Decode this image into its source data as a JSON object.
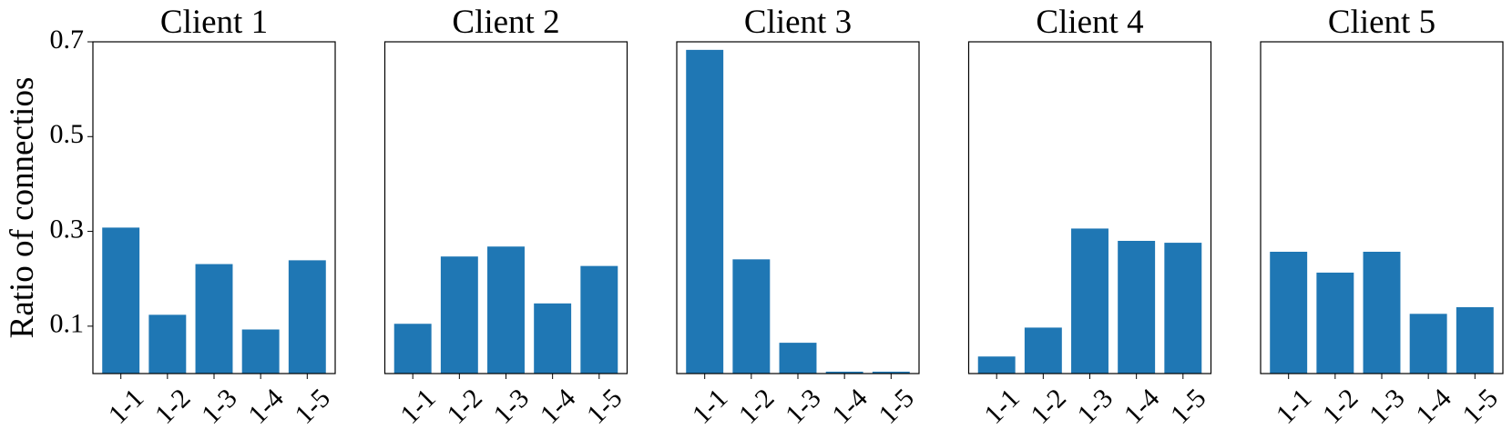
{
  "chart_data": [
    {
      "type": "bar",
      "title": "Client 1",
      "ylabel": "Ratio of connectios",
      "color": "#1f77b4",
      "categories": [
        "1-1",
        "1-2",
        "1-3",
        "1-4",
        "1-5"
      ],
      "values": [
        0.308,
        0.124,
        0.231,
        0.093,
        0.239
      ],
      "ylim": [
        0,
        0.7
      ],
      "yticks": [
        0.1,
        0.3,
        0.5,
        0.7
      ]
    },
    {
      "type": "bar",
      "title": "Client 2",
      "color": "#1f77b4",
      "categories": [
        "1-1",
        "1-2",
        "1-3",
        "1-4",
        "1-5"
      ],
      "values": [
        0.105,
        0.247,
        0.268,
        0.148,
        0.227
      ],
      "ylim": [
        0,
        0.7
      ]
    },
    {
      "type": "bar",
      "title": "Client 3",
      "color": "#1f77b4",
      "categories": [
        "1-1",
        "1-2",
        "1-3",
        "1-4",
        "1-5"
      ],
      "values": [
        0.683,
        0.241,
        0.065,
        0.004,
        0.004
      ],
      "ylim": [
        0,
        0.7
      ]
    },
    {
      "type": "bar",
      "title": "Client 4",
      "color": "#1f77b4",
      "categories": [
        "1-1",
        "1-2",
        "1-3",
        "1-4",
        "1-5"
      ],
      "values": [
        0.036,
        0.097,
        0.306,
        0.28,
        0.276
      ],
      "ylim": [
        0,
        0.7
      ]
    },
    {
      "type": "bar",
      "title": "Client 5",
      "color": "#1f77b4",
      "categories": [
        "1-1",
        "1-2",
        "1-3",
        "1-4",
        "1-5"
      ],
      "values": [
        0.257,
        0.213,
        0.257,
        0.126,
        0.14
      ],
      "ylim": [
        0,
        0.7
      ]
    }
  ]
}
